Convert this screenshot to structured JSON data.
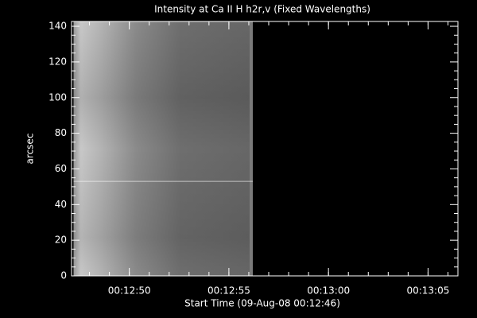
{
  "chart_data": {
    "type": "image",
    "title": "Intensity at Ca II H h2r,v (Fixed Wavelengths)",
    "xlabel": "Start Time (09-Aug-08 00:12:46)",
    "ylabel": "arcsec",
    "image_x": [
      47.2,
      56.2
    ],
    "xlim": [
      47.1,
      66.5
    ],
    "ylim": [
      0,
      142.7
    ],
    "xticks": [
      {
        "value": 50,
        "label": "00:12:50"
      },
      {
        "value": 55,
        "label": "00:12:55"
      },
      {
        "value": 60,
        "label": "00:13:00"
      },
      {
        "value": 65,
        "label": "00:13:05"
      }
    ],
    "yticks": [
      0,
      20,
      40,
      60,
      80,
      100,
      120,
      140
    ]
  }
}
